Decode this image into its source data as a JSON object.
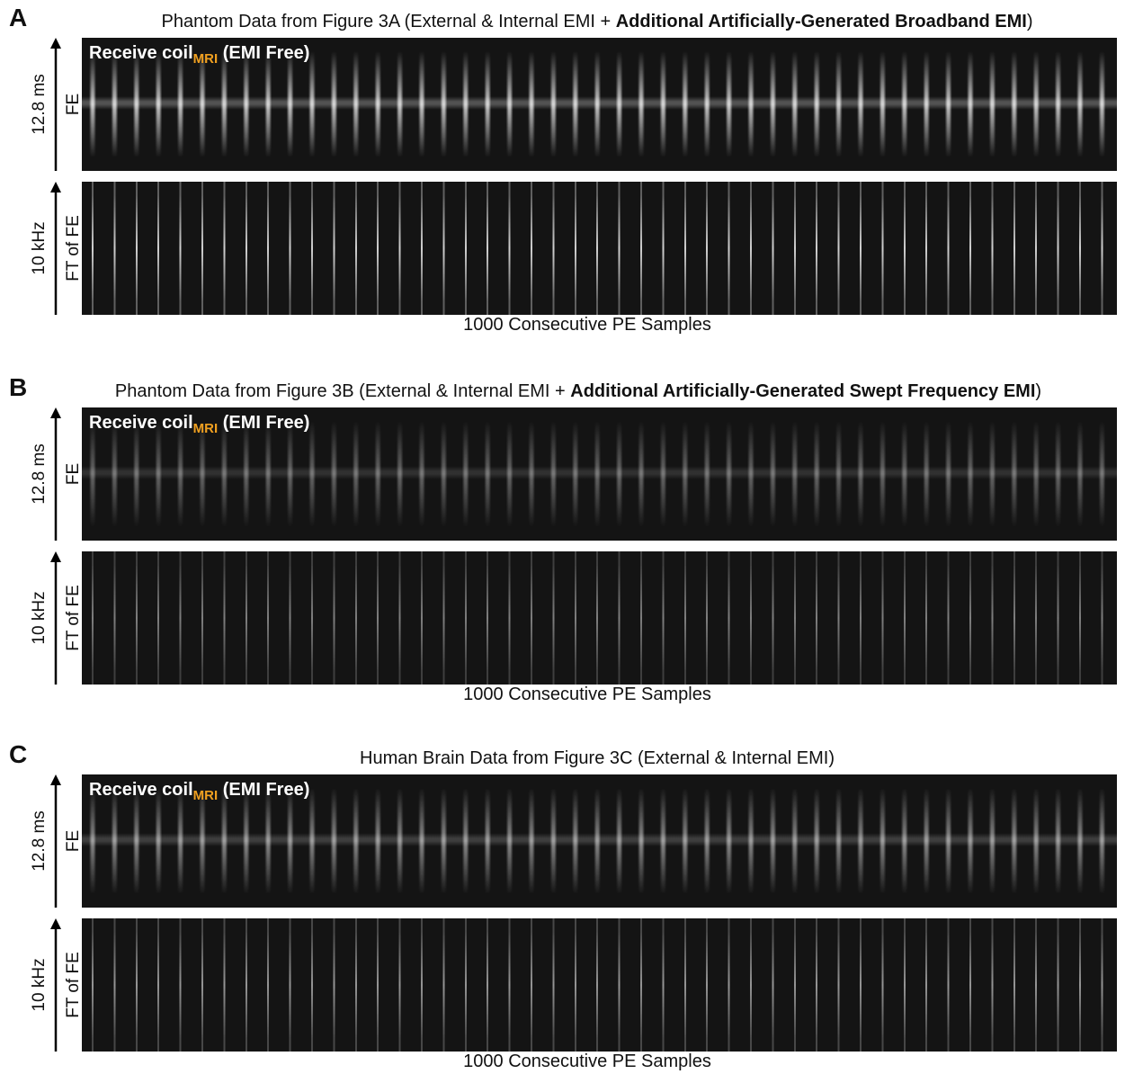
{
  "panels": [
    {
      "letter": "A",
      "title": {
        "prefix": "Phantom Data from Figure 3A  (External & Internal EMI + ",
        "bold": "Additional Artificially-Generated Broadband EMI",
        "suffix": ")"
      },
      "top_image": {
        "label": "Receive coil",
        "subscript": "MRI",
        "label_suffix": "(EMI Free)",
        "y_label": "12.8 ms",
        "y_sublabel": "FE"
      },
      "bottom_image": {
        "y_label": "10 kHz",
        "y_sublabel": "FT of FE"
      },
      "x_label": "1000 Consecutive PE Samples"
    },
    {
      "letter": "B",
      "title": {
        "prefix": "Phantom Data from Figure 3B (External & Internal EMI + ",
        "bold": "Additional Artificially-Generated Swept Frequency EMI",
        "suffix": ")"
      },
      "top_image": {
        "label": "Receive coil",
        "subscript": "MRI",
        "label_suffix": "(EMI Free)",
        "y_label": "12.8 ms",
        "y_sublabel": "FE"
      },
      "bottom_image": {
        "y_label": "10 kHz",
        "y_sublabel": "FT of FE"
      },
      "x_label": "1000 Consecutive PE Samples"
    },
    {
      "letter": "C",
      "title": {
        "text": "Human Brain Data from Figure 3C (External & Internal EMI)"
      },
      "top_image": {
        "label": "Receive coil",
        "subscript": "MRI",
        "label_suffix": "(EMI Free)",
        "y_label": "12.8 ms",
        "y_sublabel": "FE"
      },
      "bottom_image": {
        "y_label": "10 kHz",
        "y_sublabel": "FT of FE"
      },
      "x_label": "1000 Consecutive PE Samples"
    }
  ]
}
